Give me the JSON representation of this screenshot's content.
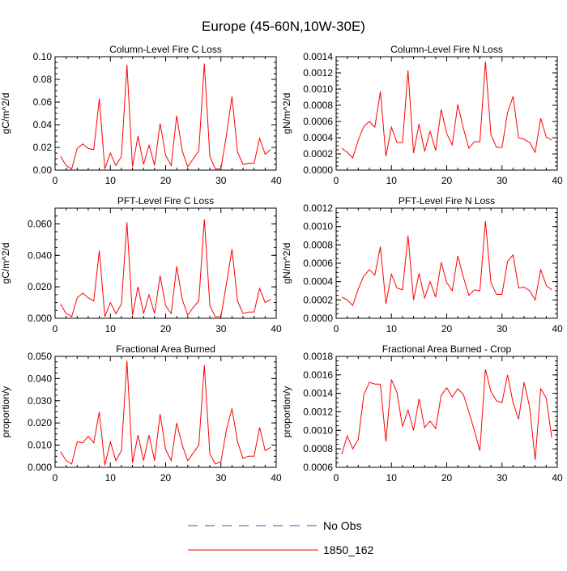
{
  "title": "Europe (45-60N,10W-30E)",
  "legend": [
    {
      "label": "No Obs",
      "color": "#4B4BB4",
      "style": "dashed"
    },
    {
      "label": "1850_162",
      "color": "#FF0000",
      "style": "solid"
    }
  ],
  "chart_data": [
    {
      "type": "line",
      "title": "Column-Level Fire C Loss",
      "ylabel": "gC/m^2/d",
      "xlim": [
        0,
        40
      ],
      "ylim": [
        0,
        0.1
      ],
      "xticks": [
        0,
        10,
        20,
        30,
        40
      ],
      "yticks": [
        0,
        0.02,
        0.04,
        0.06,
        0.08,
        0.1
      ],
      "ytick_labels": [
        "0.00",
        "0.02",
        "0.04",
        "0.06",
        "0.08",
        "0.10"
      ],
      "x": [
        1,
        2,
        3,
        4,
        5,
        6,
        7,
        8,
        9,
        10,
        11,
        12,
        13,
        14,
        15,
        16,
        17,
        18,
        19,
        20,
        21,
        22,
        23,
        24,
        25,
        26,
        27,
        28,
        29,
        30,
        31,
        32,
        33,
        34,
        35,
        36,
        37,
        38,
        39
      ],
      "series": [
        {
          "name": "1850_162",
          "color": "#FF0000",
          "values": [
            0.012,
            0.004,
            0.001,
            0.019,
            0.023,
            0.019,
            0.018,
            0.063,
            0.001,
            0.015,
            0.004,
            0.012,
            0.093,
            0.003,
            0.03,
            0.005,
            0.022,
            0.004,
            0.041,
            0.013,
            0.004,
            0.048,
            0.017,
            0.003,
            0.01,
            0.017,
            0.094,
            0.012,
            0.001,
            0.001,
            0.031,
            0.065,
            0.016,
            0.005,
            0.006,
            0.006,
            0.028,
            0.014,
            0.018
          ]
        }
      ]
    },
    {
      "type": "line",
      "title": "Column-Level Fire N Loss",
      "ylabel": "gN/m^2/d",
      "xlim": [
        0,
        40
      ],
      "ylim": [
        0,
        0.0014
      ],
      "xticks": [
        0,
        10,
        20,
        30,
        40
      ],
      "yticks": [
        0,
        0.0002,
        0.0004,
        0.0006,
        0.0008,
        0.001,
        0.0012,
        0.0014
      ],
      "ytick_labels": [
        "0.0000",
        "0.0002",
        "0.0004",
        "0.0006",
        "0.0008",
        "0.0010",
        "0.0012",
        "0.0014"
      ],
      "x": [
        1,
        2,
        3,
        4,
        5,
        6,
        7,
        8,
        9,
        10,
        11,
        12,
        13,
        14,
        15,
        16,
        17,
        18,
        19,
        20,
        21,
        22,
        23,
        24,
        25,
        26,
        27,
        28,
        29,
        30,
        31,
        32,
        33,
        34,
        35,
        36,
        37,
        38,
        39
      ],
      "series": [
        {
          "name": "1850_162",
          "color": "#FF0000",
          "values": [
            0.00027,
            0.00022,
            0.00015,
            0.00037,
            0.00054,
            0.0006,
            0.00053,
            0.00097,
            0.00017,
            0.00053,
            0.00034,
            0.00034,
            0.00123,
            0.00021,
            0.00057,
            0.00023,
            0.00048,
            0.00024,
            0.00075,
            0.00045,
            0.00031,
            0.00081,
            0.00052,
            0.00027,
            0.00035,
            0.00035,
            0.00134,
            0.00044,
            0.00028,
            0.00028,
            0.00071,
            0.00091,
            0.0004,
            0.00038,
            0.00034,
            0.00022,
            0.00064,
            0.00041,
            0.00037
          ]
        }
      ]
    },
    {
      "type": "line",
      "title": "PFT-Level Fire C Loss",
      "ylabel": "gC/m^2/d",
      "xlim": [
        0,
        40
      ],
      "ylim": [
        0,
        0.07
      ],
      "xticks": [
        0,
        10,
        20,
        30,
        40
      ],
      "yticks": [
        0,
        0.02,
        0.04,
        0.06
      ],
      "ytick_labels": [
        "0.000",
        "0.020",
        "0.040",
        "0.060"
      ],
      "x": [
        1,
        2,
        3,
        4,
        5,
        6,
        7,
        8,
        9,
        10,
        11,
        12,
        13,
        14,
        15,
        16,
        17,
        18,
        19,
        20,
        21,
        22,
        23,
        24,
        25,
        26,
        27,
        28,
        29,
        30,
        31,
        32,
        33,
        34,
        35,
        36,
        37,
        38,
        39
      ],
      "series": [
        {
          "name": "1850_162",
          "color": "#FF0000",
          "values": [
            0.009,
            0.003,
            0.001,
            0.013,
            0.016,
            0.013,
            0.011,
            0.043,
            0.001,
            0.01,
            0.003,
            0.009,
            0.061,
            0.002,
            0.02,
            0.003,
            0.015,
            0.003,
            0.027,
            0.008,
            0.003,
            0.033,
            0.012,
            0.002,
            0.007,
            0.011,
            0.063,
            0.008,
            0.001,
            0.001,
            0.022,
            0.044,
            0.011,
            0.003,
            0.004,
            0.004,
            0.019,
            0.01,
            0.012
          ]
        }
      ]
    },
    {
      "type": "line",
      "title": "PFT-Level Fire N Loss",
      "ylabel": "gN/m^2/d",
      "xlim": [
        0,
        40
      ],
      "ylim": [
        0,
        0.0012
      ],
      "xticks": [
        0,
        10,
        20,
        30,
        40
      ],
      "yticks": [
        0,
        0.0002,
        0.0004,
        0.0006,
        0.0008,
        0.001,
        0.0012
      ],
      "ytick_labels": [
        "0.0000",
        "0.0002",
        "0.0004",
        "0.0006",
        "0.0008",
        "0.0010",
        "0.0012"
      ],
      "x": [
        1,
        2,
        3,
        4,
        5,
        6,
        7,
        8,
        9,
        10,
        11,
        12,
        13,
        14,
        15,
        16,
        17,
        18,
        19,
        20,
        21,
        22,
        23,
        24,
        25,
        26,
        27,
        28,
        29,
        30,
        31,
        32,
        33,
        34,
        35,
        36,
        37,
        38,
        39
      ],
      "series": [
        {
          "name": "1850_162",
          "color": "#FF0000",
          "values": [
            0.00023,
            0.0002,
            0.00014,
            0.00032,
            0.00046,
            0.00053,
            0.00047,
            0.00078,
            0.00016,
            0.00048,
            0.00033,
            0.00031,
            0.0009,
            0.0002,
            0.00049,
            0.00022,
            0.0004,
            0.00023,
            0.00061,
            0.00039,
            0.0003,
            0.00068,
            0.00045,
            0.00025,
            0.00031,
            0.0003,
            0.00106,
            0.00039,
            0.00026,
            0.00026,
            0.00062,
            0.00069,
            0.00033,
            0.00034,
            0.0003,
            0.0002,
            0.00053,
            0.00036,
            0.00031
          ]
        }
      ]
    },
    {
      "type": "line",
      "title": "Fractional Area Burned",
      "ylabel": "proportion/y",
      "xlim": [
        0,
        40
      ],
      "ylim": [
        0,
        0.05
      ],
      "xticks": [
        0,
        10,
        20,
        30,
        40
      ],
      "yticks": [
        0,
        0.01,
        0.02,
        0.03,
        0.04,
        0.05
      ],
      "ytick_labels": [
        "0.000",
        "0.010",
        "0.020",
        "0.030",
        "0.040",
        "0.050"
      ],
      "x": [
        1,
        2,
        3,
        4,
        5,
        6,
        7,
        8,
        9,
        10,
        11,
        12,
        13,
        14,
        15,
        16,
        17,
        18,
        19,
        20,
        21,
        22,
        23,
        24,
        25,
        26,
        27,
        28,
        29,
        30,
        31,
        32,
        33,
        34,
        35,
        36,
        37,
        38,
        39
      ],
      "series": [
        {
          "name": "1850_162",
          "color": "#FF0000",
          "values": [
            0.007,
            0.003,
            0.0015,
            0.0115,
            0.011,
            0.014,
            0.011,
            0.025,
            0.001,
            0.0115,
            0.003,
            0.0075,
            0.048,
            0.002,
            0.0145,
            0.003,
            0.0145,
            0.003,
            0.024,
            0.008,
            0.003,
            0.02,
            0.01,
            0.003,
            0.0065,
            0.01,
            0.046,
            0.006,
            0.0015,
            0.0025,
            0.017,
            0.0265,
            0.0115,
            0.004,
            0.005,
            0.005,
            0.018,
            0.0075,
            0.009
          ]
        }
      ]
    },
    {
      "type": "line",
      "title": "Fractional Area Burned - Crop",
      "ylabel": "proportion/y",
      "xlim": [
        0,
        40
      ],
      "ylim": [
        0.0006,
        0.0018
      ],
      "xticks": [
        0,
        10,
        20,
        30,
        40
      ],
      "yticks": [
        0.0006,
        0.0008,
        0.001,
        0.0012,
        0.0014,
        0.0016,
        0.0018
      ],
      "ytick_labels": [
        "0.0006",
        "0.0008",
        "0.0010",
        "0.0012",
        "0.0014",
        "0.0016",
        "0.0018"
      ],
      "x": [
        1,
        2,
        3,
        4,
        5,
        6,
        7,
        8,
        9,
        10,
        11,
        12,
        13,
        14,
        15,
        16,
        17,
        18,
        19,
        20,
        21,
        22,
        23,
        24,
        25,
        26,
        27,
        28,
        29,
        30,
        31,
        32,
        33,
        34,
        35,
        36,
        37,
        38,
        39
      ],
      "series": [
        {
          "name": "1850_162",
          "color": "#FF0000",
          "values": [
            0.00074,
            0.00094,
            0.0008,
            0.0009,
            0.00138,
            0.00152,
            0.0015,
            0.0015,
            0.00088,
            0.00155,
            0.00141,
            0.00104,
            0.00122,
            0.001,
            0.00134,
            0.00103,
            0.0011,
            0.00102,
            0.00138,
            0.00146,
            0.00136,
            0.00145,
            0.00139,
            0.0012,
            0.001,
            0.00078,
            0.00166,
            0.00142,
            0.00132,
            0.0013,
            0.0016,
            0.0013,
            0.00112,
            0.00152,
            0.00125,
            0.00068,
            0.00145,
            0.00135,
            0.00092
          ]
        }
      ]
    }
  ]
}
